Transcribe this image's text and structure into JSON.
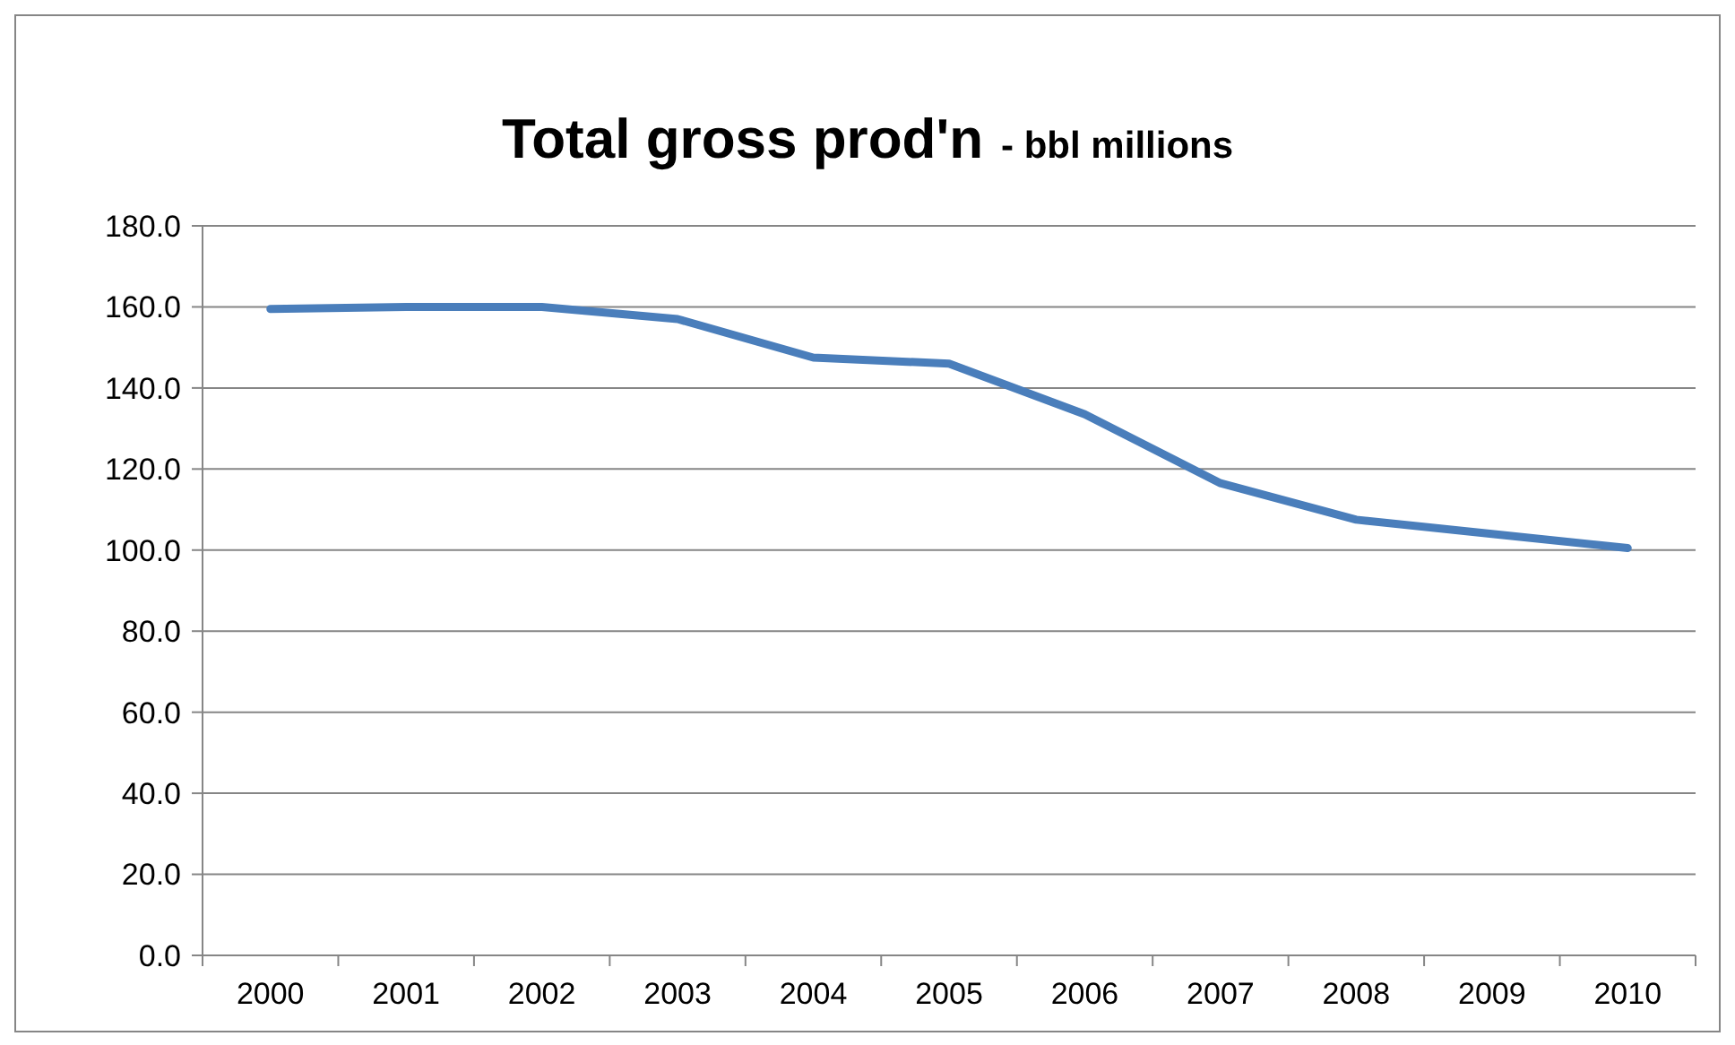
{
  "chart_data": {
    "type": "line",
    "title": "Total gross prod'n",
    "subtitle": "- bbl millions",
    "categories": [
      "2000",
      "2001",
      "2002",
      "2003",
      "2004",
      "2005",
      "2006",
      "2007",
      "2008",
      "2009",
      "2010"
    ],
    "series": [
      {
        "color": "#4a7ebb",
        "values": [
          159.5,
          160,
          160,
          157,
          147.5,
          146,
          133.5,
          116.5,
          107.5,
          104,
          100.5
        ]
      }
    ],
    "ylim": [
      0,
      180
    ],
    "yticks": [
      {
        "value": 0,
        "label": "0.0"
      },
      {
        "value": 20,
        "label": "20.0"
      },
      {
        "value": 40,
        "label": "40.0"
      },
      {
        "value": 60,
        "label": "60.0"
      },
      {
        "value": 80,
        "label": "80.0"
      },
      {
        "value": 100,
        "label": "100.0"
      },
      {
        "value": 120,
        "label": "120.0"
      },
      {
        "value": 140,
        "label": "140.0"
      },
      {
        "value": 160,
        "label": "160.0"
      },
      {
        "value": 180,
        "label": "180.0"
      }
    ],
    "grid": "y",
    "marker": "none",
    "line_style": "solid"
  }
}
